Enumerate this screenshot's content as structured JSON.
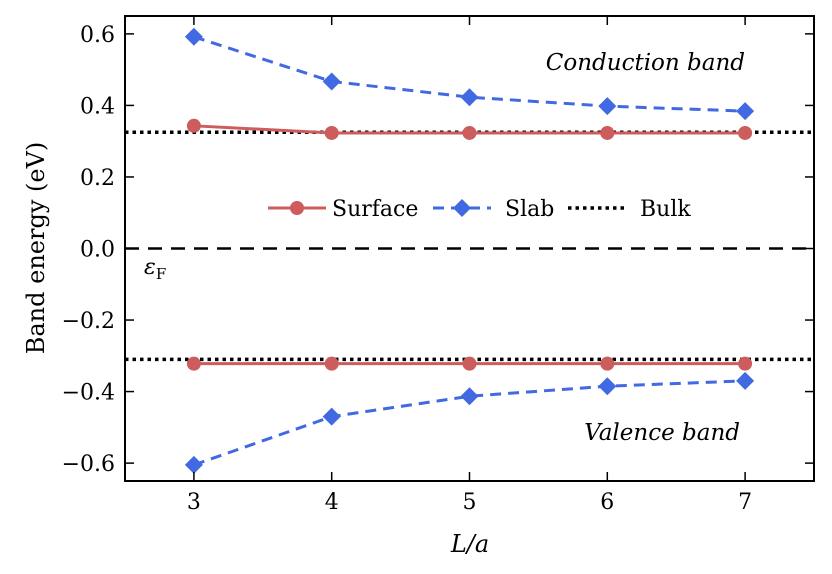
{
  "chart_data": {
    "type": "line",
    "xlabel": "L/a",
    "ylabel": "Band energy (eV)",
    "xlim": [
      2.5,
      7.5
    ],
    "ylim": [
      -0.65,
      0.65
    ],
    "x_ticks": [
      3,
      4,
      5,
      6,
      7
    ],
    "x_tick_labels": [
      "3",
      "4",
      "5",
      "6",
      "7"
    ],
    "y_ticks": [
      0.6,
      0.4,
      0.2,
      0.0,
      -0.2,
      -0.4,
      -0.6
    ],
    "y_tick_labels": [
      "0.6",
      "0.4",
      "0.2",
      "0.0",
      "−0.2",
      "−0.4",
      "−0.6"
    ],
    "x": [
      3,
      4,
      5,
      6,
      7
    ],
    "series": [
      {
        "name": "Surface",
        "band": "conduction",
        "style": "solid",
        "marker": "circle",
        "color": "#cd5c5c",
        "values": [
          0.343,
          0.323,
          0.323,
          0.323,
          0.323
        ]
      },
      {
        "name": "Slab",
        "band": "conduction",
        "style": "dashed",
        "marker": "diamond",
        "color": "#4169e1",
        "values": [
          0.592,
          0.467,
          0.423,
          0.398,
          0.384
        ]
      },
      {
        "name": "Surface",
        "band": "valence",
        "style": "solid",
        "marker": "circle",
        "color": "#cd5c5c",
        "values": [
          -0.322,
          -0.322,
          -0.322,
          -0.322,
          -0.322
        ]
      },
      {
        "name": "Slab",
        "band": "valence",
        "style": "dashed",
        "marker": "diamond",
        "color": "#4169e1",
        "values": [
          -0.605,
          -0.47,
          -0.413,
          -0.385,
          -0.37
        ]
      }
    ],
    "bulk_lines": [
      0.325,
      -0.31
    ],
    "fermi_level": 0.0,
    "fermi_label": "ε",
    "fermi_label_sub": "F",
    "annotations": [
      "Conduction band",
      "Valence band"
    ],
    "legend": {
      "placement": "center",
      "entries": [
        {
          "label": "Surface",
          "color": "#cd5c5c",
          "style": "solid",
          "marker": "circle"
        },
        {
          "label": "Slab",
          "color": "#4169e1",
          "style": "dashed",
          "marker": "diamond"
        },
        {
          "label": "Bulk",
          "color": "#000000",
          "style": "dotted",
          "marker": "none"
        }
      ]
    }
  }
}
